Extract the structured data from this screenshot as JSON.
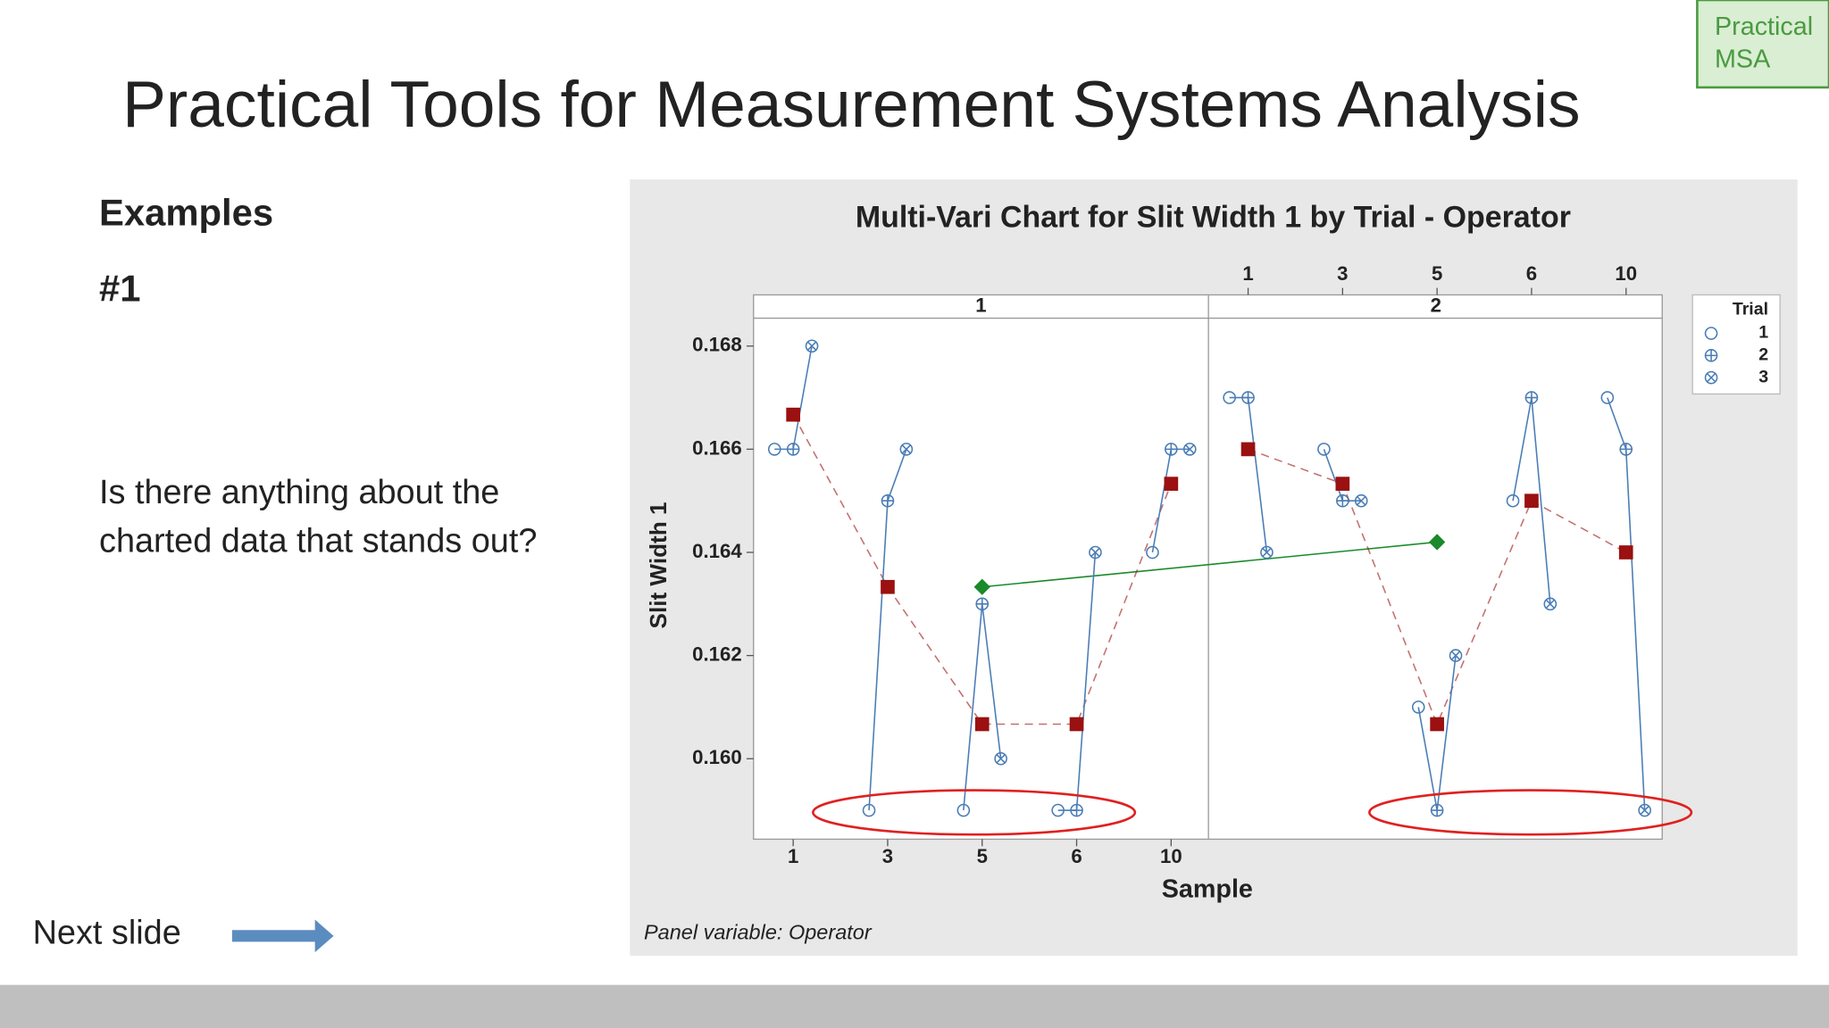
{
  "slide": {
    "title": "Practical Tools for Measurement Systems Analysis",
    "heading": "Examples",
    "example": "#1",
    "question": [
      "Is there anything about the",
      "charted data that stands out?"
    ],
    "next": "Next slide",
    "logo": [
      "Practical",
      "MSA"
    ]
  },
  "chart_data": {
    "type": "multi-vari",
    "title": "Multi-Vari Chart for Slit Width 1 by Trial - Operator",
    "xlabel": "Sample",
    "ylabel": "Slit Width 1",
    "footnote": "Panel variable: Operator",
    "panels": [
      "1",
      "2"
    ],
    "categories": [
      "1",
      "3",
      "5",
      "6",
      "10"
    ],
    "legend_title": "Trial",
    "series": [
      {
        "name": "1",
        "marker": "circle",
        "color": "#4a7db5",
        "values": [
          [
            0.166,
            0.159,
            0.159,
            0.159,
            0.164
          ],
          [
            0.167,
            0.166,
            0.161,
            0.165,
            0.167
          ]
        ]
      },
      {
        "name": "2",
        "marker": "circle-plus",
        "color": "#4a7db5",
        "values": [
          [
            0.166,
            0.165,
            0.163,
            0.159,
            0.166
          ],
          [
            0.167,
            0.165,
            0.159,
            0.167,
            0.166
          ]
        ]
      },
      {
        "name": "3",
        "marker": "circle-cross",
        "color": "#4a7db5",
        "values": [
          [
            0.168,
            0.166,
            0.16,
            0.164,
            0.166
          ],
          [
            0.164,
            0.165,
            0.162,
            0.163,
            0.159
          ]
        ]
      }
    ],
    "sample_means": {
      "color": "#9b1010",
      "values": [
        [
          0.16667,
          0.16333,
          0.16067,
          0.16067,
          0.16533
        ],
        [
          0.166,
          0.16533,
          0.16067,
          0.165,
          0.164
        ]
      ]
    },
    "operator_means": {
      "color": "#1a8a2a",
      "values": [
        0.16333,
        0.1642
      ]
    },
    "ylim": [
      0.15844,
      0.16854
    ],
    "yticks": [
      {
        "value": 0.16,
        "label": "0.160"
      },
      0.162,
      0.164,
      0.166,
      0.168
    ]
  }
}
